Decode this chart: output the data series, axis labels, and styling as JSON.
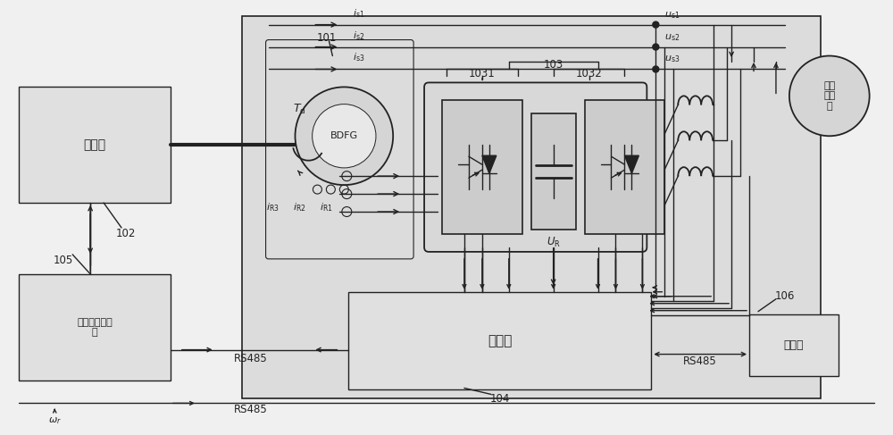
{
  "bg_color": "#f0f0f0",
  "line_color": "#222222",
  "box_fill": "#e0e0e0",
  "enc_fill": "#dcdcdc",
  "white": "#f8f8f8",
  "labels": {
    "diesel": "柴油机",
    "bdfg": "BDFG",
    "controller": "控制器",
    "governor": "柴油机调速系\n统",
    "upper": "上位机",
    "grid": "电网\n或负\n载",
    "rs485_left": "RS485",
    "rs485_right": "RS485",
    "label_101": "101",
    "label_102": "102",
    "label_103": "103",
    "label_1031": "1031",
    "label_1032": "1032",
    "label_104": "104",
    "label_105": "105",
    "label_106": "106",
    "Td": "$T_{\\rm d}$",
    "iR1": "$i_{\\rm R1}$",
    "iR2": "$i_{\\rm R2}$",
    "iR3": "$i_{\\rm R3}$",
    "is1": "$i_{\\rm s1}$",
    "is2": "$i_{\\rm s2}$",
    "is3": "$i_{\\rm s3}$",
    "us1": "$u_{\\rm s1}$",
    "us2": "$u_{\\rm s2}$",
    "us3": "$u_{\\rm s3}$",
    "UR": "$U_{\\rm R}$"
  }
}
